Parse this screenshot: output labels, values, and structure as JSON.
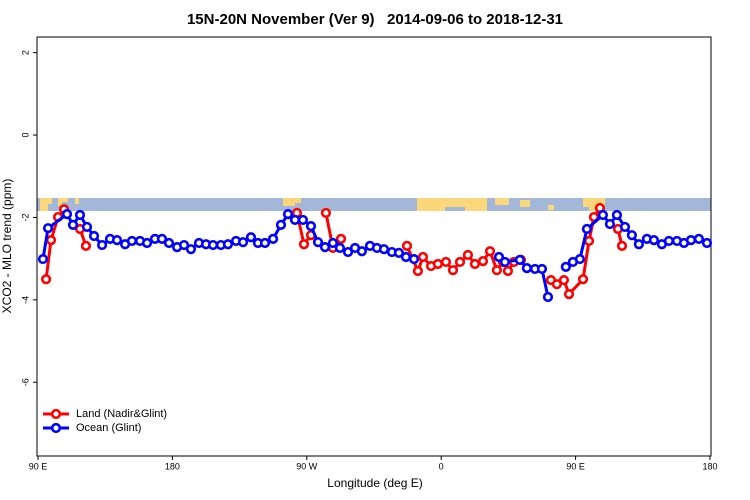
{
  "chart_data": {
    "type": "line",
    "title": "15N-20N November (Ver 9)   2014-09-06 to 2018-12-31",
    "x_label": "Longitude (deg E)",
    "y_label": "XCO2 - MLO trend (ppm)",
    "xlim": [
      89.3,
      540.7
    ],
    "ylim": [
      -7.79,
      2.38
    ],
    "xticks": [
      {
        "value": 90,
        "label": "90 E"
      },
      {
        "value": 180,
        "label": "180"
      },
      {
        "value": 270,
        "label": "90 W"
      },
      {
        "value": 360,
        "label": "0"
      },
      {
        "value": 450,
        "label": "90 E"
      },
      {
        "value": 540,
        "label": "180"
      }
    ],
    "yticks": [
      2,
      0,
      -2,
      -4,
      -6
    ],
    "legend": "bottomleft",
    "series": [
      {
        "name": "Land (Nadir&Glint)",
        "color": "#ff0000",
        "x": [
          95.4,
          98.7,
          103.4,
          107.4,
          null,
          118.1,
          122.1,
          null,
          263.4,
          268.1,
          272.8,
          null,
          282.8,
          287.5,
          292.9,
          null,
          337.1,
          344.4,
          347.8,
          353.2,
          357.8,
          363.2,
          367.9,
          372.6,
          377.9,
          382.6,
          388.0,
          392.7,
          397.3,
          401.4,
          404.7,
          408.7,
          413.4,
          null,
          433.5,
          437.5,
          442.2,
          445.6,
          455.0,
          459.0,
          462.3,
          466.3,
          null,
          478.4,
          481.1
        ],
        "values": [
          -3.5,
          -2.55,
          -1.99,
          -1.8,
          null,
          -2.28,
          -2.69,
          null,
          -1.89,
          -2.65,
          -2.43,
          null,
          -1.89,
          -2.74,
          -2.52,
          null,
          -2.69,
          -3.3,
          -2.96,
          -3.18,
          -3.13,
          -3.08,
          -3.28,
          -3.08,
          -2.91,
          -3.13,
          -3.06,
          -2.82,
          -3.28,
          -3.08,
          -3.3,
          -3.08,
          -3.03,
          null,
          -3.52,
          -3.62,
          -3.52,
          -3.86,
          -3.5,
          -2.57,
          -1.99,
          -1.77,
          null,
          -2.28,
          -2.69
        ]
      },
      {
        "name": "Ocean (Glint)",
        "color": "#0000ff",
        "x": [
          93.3,
          96.7,
          109.4,
          113.4,
          118.1,
          122.8,
          127.5,
          132.9,
          138.2,
          142.9,
          148.3,
          152.9,
          158.3,
          163.0,
          168.3,
          173.0,
          177.7,
          183.1,
          187.8,
          192.4,
          197.8,
          202.5,
          207.2,
          212.5,
          217.2,
          222.6,
          227.3,
          232.6,
          237.3,
          242.0,
          247.4,
          252.7,
          257.4,
          262.1,
          267.4,
          272.8,
          277.5,
          282.2,
          287.5,
          292.2,
          297.6,
          302.3,
          306.9,
          312.3,
          317.0,
          321.7,
          327.0,
          331.7,
          336.4,
          341.8,
          null,
          398.7,
          402.7,
          412.7,
          417.4,
          422.8,
          427.5,
          431.5,
          null,
          443.5,
          448.2,
          452.9,
          457.6,
          468.3,
          473.0,
          477.7,
          483.1,
          487.7,
          492.4,
          497.8,
          502.5,
          507.8,
          512.5,
          517.9,
          522.6,
          527.3,
          532.6,
          538.0
        ],
        "values": [
          -3.01,
          -2.26,
          -1.92,
          -2.18,
          -1.94,
          -2.23,
          -2.45,
          -2.67,
          -2.52,
          -2.55,
          -2.65,
          -2.57,
          -2.57,
          -2.62,
          -2.52,
          -2.52,
          -2.62,
          -2.72,
          -2.67,
          -2.77,
          -2.62,
          -2.65,
          -2.67,
          -2.67,
          -2.65,
          -2.57,
          -2.6,
          -2.48,
          -2.62,
          -2.62,
          -2.52,
          -2.18,
          -1.92,
          -2.06,
          -2.06,
          -2.21,
          -2.6,
          -2.72,
          -2.62,
          -2.74,
          -2.84,
          -2.74,
          -2.82,
          -2.69,
          -2.74,
          -2.77,
          -2.84,
          -2.86,
          -2.96,
          -3.01,
          null,
          -2.96,
          -3.08,
          -3.03,
          -3.23,
          -3.25,
          -3.25,
          -3.93,
          null,
          -3.2,
          -3.08,
          -3.01,
          -2.28,
          -1.94,
          -2.16,
          -1.94,
          -2.23,
          -2.43,
          -2.65,
          -2.52,
          -2.55,
          -2.65,
          -2.57,
          -2.57,
          -2.62,
          -2.55,
          -2.52,
          -2.62
        ]
      }
    ]
  }
}
